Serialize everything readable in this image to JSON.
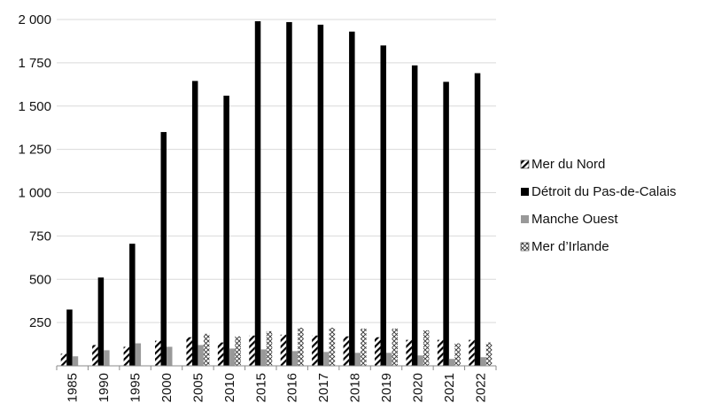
{
  "chart_data": {
    "type": "bar",
    "categories": [
      "1985",
      "1990",
      "1995",
      "2000",
      "2005",
      "2010",
      "2015",
      "2016",
      "2017",
      "2018",
      "2019",
      "2020",
      "2021",
      "2022"
    ],
    "series": [
      {
        "name": "Mer du Nord",
        "pattern": "diagonal-hatch",
        "values": [
          70,
          120,
          110,
          145,
          165,
          135,
          175,
          180,
          175,
          170,
          165,
          150,
          150,
          150
        ]
      },
      {
        "name": "Détroit du Pas-de-Calais",
        "pattern": "solid-black",
        "color": "#000000",
        "values": [
          325,
          510,
          705,
          1350,
          1645,
          1560,
          1990,
          1985,
          1970,
          1930,
          1850,
          1735,
          1640,
          1690
        ]
      },
      {
        "name": "Manche Ouest",
        "pattern": "solid-gray",
        "color": "#999999",
        "values": [
          55,
          90,
          130,
          110,
          120,
          100,
          95,
          85,
          80,
          75,
          75,
          60,
          40,
          50
        ]
      },
      {
        "name": "Mer d’Irlande",
        "pattern": "crosshatch",
        "values": [
          0,
          0,
          0,
          0,
          185,
          170,
          200,
          220,
          220,
          215,
          215,
          205,
          130,
          135
        ]
      }
    ],
    "ylim": [
      0,
      2000
    ],
    "yticks": [
      {
        "value": 250,
        "label": "250"
      },
      {
        "value": 500,
        "label": "500"
      },
      {
        "value": 750,
        "label": "750"
      },
      {
        "value": 1000,
        "label": "1 000"
      },
      {
        "value": 1250,
        "label": "1 250"
      },
      {
        "value": 1500,
        "label": "1 500"
      },
      {
        "value": 1750,
        "label": "1 750"
      },
      {
        "value": 2000,
        "label": "2 000"
      }
    ],
    "grid": true,
    "legend_position": "right",
    "title": "",
    "xlabel": "",
    "ylabel": ""
  }
}
